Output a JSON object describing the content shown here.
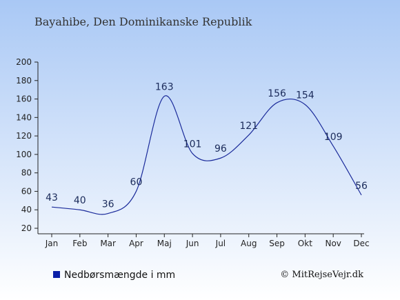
{
  "header": {
    "title": "Bayahibe, Den Dominikanske Republik"
  },
  "legend": {
    "label": "Nedbørsmængde i mm",
    "color": "#0a1fa8"
  },
  "credit": "© MitRejseVejr.dk",
  "colors": {
    "background_top": "#a9c8f5",
    "background_bottom": "#ffffff",
    "line": "#1a2a9a",
    "axis": "#222222"
  },
  "chart_data": {
    "type": "line",
    "categories": [
      "Jan",
      "Feb",
      "Mar",
      "Apr",
      "Maj",
      "Jun",
      "Jul",
      "Aug",
      "Sep",
      "Okt",
      "Nov",
      "Dec"
    ],
    "series": [
      {
        "name": "Nedbørsmængde i mm",
        "values": [
          43,
          40,
          36,
          60,
          163,
          101,
          96,
          121,
          156,
          154,
          109,
          56
        ]
      }
    ],
    "data_labels": [
      "43",
      "40",
      "36",
      "60",
      "163",
      "101",
      "96",
      "121",
      "156",
      "154",
      "109",
      "56"
    ],
    "ylim": [
      20,
      200
    ],
    "yticks": [
      20,
      40,
      60,
      80,
      100,
      120,
      140,
      160,
      180,
      200
    ],
    "ytick_labels": [
      "20",
      "40",
      "60",
      "80",
      "100",
      "120",
      "140",
      "160",
      "180",
      "200"
    ],
    "grid": false,
    "legend_position": "bottom-left"
  }
}
